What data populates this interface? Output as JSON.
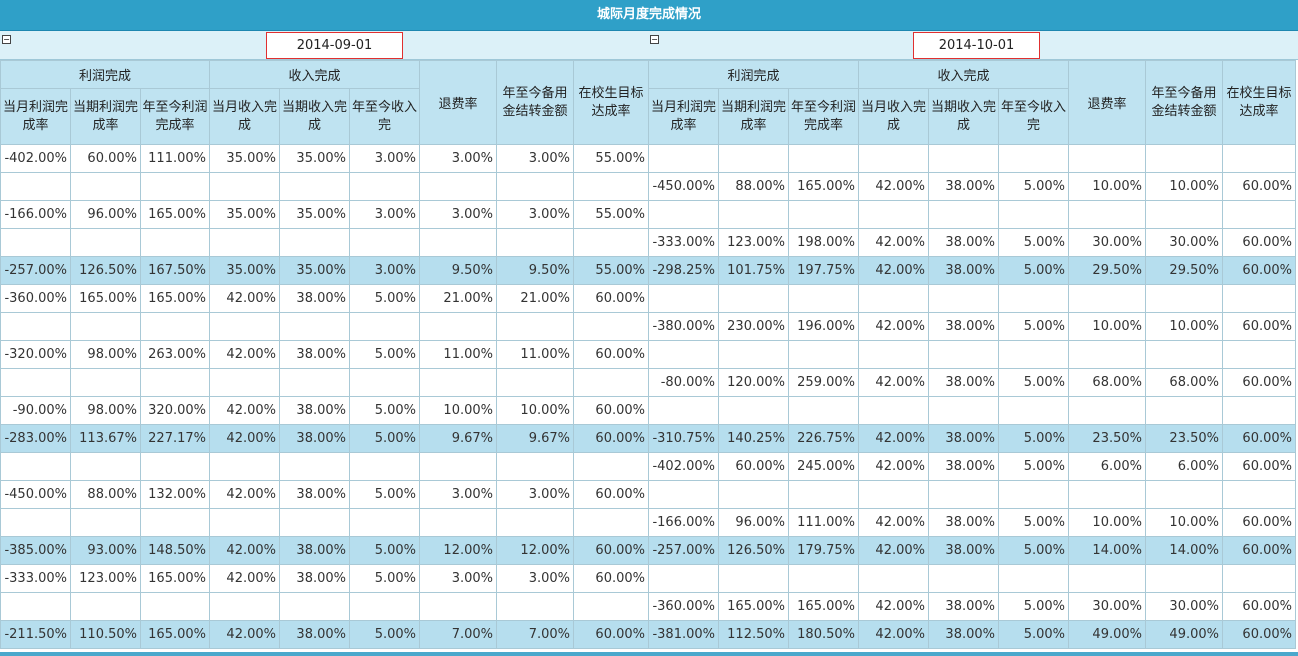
{
  "title": "城际月度完成情况",
  "groups": [
    {
      "date": "2014-09-01"
    },
    {
      "date": "2014-10-01"
    }
  ],
  "headers": {
    "profit_group": "利润完成",
    "income_group": "收入完成",
    "refund_rate": "退费率",
    "reserve_transfer": "年至今备用金结转金额",
    "enrollment_rate": "在校生目标达成率",
    "profit_month": "当月利润完成率",
    "profit_period": "当期利润完成率",
    "profit_ytd": "年至今利润完成率",
    "income_month": "当月收入完成",
    "income_period": "当期收入完成",
    "income_ytd": "年至今收入完"
  },
  "rows": [
    {
      "sub": false,
      "c": [
        "-402.00%",
        "60.00%",
        "111.00%",
        "35.00%",
        "35.00%",
        "3.00%",
        "3.00%",
        "3.00%",
        "55.00%",
        "",
        "",
        "",
        "",
        "",
        "",
        "",
        "",
        ""
      ]
    },
    {
      "sub": false,
      "c": [
        "",
        "",
        "",
        "",
        "",
        "",
        "",
        "",
        "",
        "-450.00%",
        "88.00%",
        "165.00%",
        "42.00%",
        "38.00%",
        "5.00%",
        "10.00%",
        "10.00%",
        "60.00%"
      ]
    },
    {
      "sub": false,
      "c": [
        "-166.00%",
        "96.00%",
        "165.00%",
        "35.00%",
        "35.00%",
        "3.00%",
        "3.00%",
        "3.00%",
        "55.00%",
        "",
        "",
        "",
        "",
        "",
        "",
        "",
        "",
        ""
      ]
    },
    {
      "sub": false,
      "c": [
        "",
        "",
        "",
        "",
        "",
        "",
        "",
        "",
        "",
        "-333.00%",
        "123.00%",
        "198.00%",
        "42.00%",
        "38.00%",
        "5.00%",
        "30.00%",
        "30.00%",
        "60.00%"
      ]
    },
    {
      "sub": true,
      "c": [
        "-257.00%",
        "126.50%",
        "167.50%",
        "35.00%",
        "35.00%",
        "3.00%",
        "9.50%",
        "9.50%",
        "55.00%",
        "-298.25%",
        "101.75%",
        "197.75%",
        "42.00%",
        "38.00%",
        "5.00%",
        "29.50%",
        "29.50%",
        "60.00%"
      ]
    },
    {
      "sub": false,
      "c": [
        "-360.00%",
        "165.00%",
        "165.00%",
        "42.00%",
        "38.00%",
        "5.00%",
        "21.00%",
        "21.00%",
        "60.00%",
        "",
        "",
        "",
        "",
        "",
        "",
        "",
        "",
        ""
      ]
    },
    {
      "sub": false,
      "c": [
        "",
        "",
        "",
        "",
        "",
        "",
        "",
        "",
        "",
        "-380.00%",
        "230.00%",
        "196.00%",
        "42.00%",
        "38.00%",
        "5.00%",
        "10.00%",
        "10.00%",
        "60.00%"
      ]
    },
    {
      "sub": false,
      "c": [
        "-320.00%",
        "98.00%",
        "263.00%",
        "42.00%",
        "38.00%",
        "5.00%",
        "11.00%",
        "11.00%",
        "60.00%",
        "",
        "",
        "",
        "",
        "",
        "",
        "",
        "",
        ""
      ]
    },
    {
      "sub": false,
      "c": [
        "",
        "",
        "",
        "",
        "",
        "",
        "",
        "",
        "",
        "-80.00%",
        "120.00%",
        "259.00%",
        "42.00%",
        "38.00%",
        "5.00%",
        "68.00%",
        "68.00%",
        "60.00%"
      ]
    },
    {
      "sub": false,
      "c": [
        "-90.00%",
        "98.00%",
        "320.00%",
        "42.00%",
        "38.00%",
        "5.00%",
        "10.00%",
        "10.00%",
        "60.00%",
        "",
        "",
        "",
        "",
        "",
        "",
        "",
        "",
        ""
      ]
    },
    {
      "sub": true,
      "c": [
        "-283.00%",
        "113.67%",
        "227.17%",
        "42.00%",
        "38.00%",
        "5.00%",
        "9.67%",
        "9.67%",
        "60.00%",
        "-310.75%",
        "140.25%",
        "226.75%",
        "42.00%",
        "38.00%",
        "5.00%",
        "23.50%",
        "23.50%",
        "60.00%"
      ]
    },
    {
      "sub": false,
      "c": [
        "",
        "",
        "",
        "",
        "",
        "",
        "",
        "",
        "",
        "-402.00%",
        "60.00%",
        "245.00%",
        "42.00%",
        "38.00%",
        "5.00%",
        "6.00%",
        "6.00%",
        "60.00%"
      ]
    },
    {
      "sub": false,
      "c": [
        "-450.00%",
        "88.00%",
        "132.00%",
        "42.00%",
        "38.00%",
        "5.00%",
        "3.00%",
        "3.00%",
        "60.00%",
        "",
        "",
        "",
        "",
        "",
        "",
        "",
        "",
        ""
      ]
    },
    {
      "sub": false,
      "c": [
        "",
        "",
        "",
        "",
        "",
        "",
        "",
        "",
        "",
        "-166.00%",
        "96.00%",
        "111.00%",
        "42.00%",
        "38.00%",
        "5.00%",
        "10.00%",
        "10.00%",
        "60.00%"
      ]
    },
    {
      "sub": true,
      "c": [
        "-385.00%",
        "93.00%",
        "148.50%",
        "42.00%",
        "38.00%",
        "5.00%",
        "12.00%",
        "12.00%",
        "60.00%",
        "-257.00%",
        "126.50%",
        "179.75%",
        "42.00%",
        "38.00%",
        "5.00%",
        "14.00%",
        "14.00%",
        "60.00%"
      ]
    },
    {
      "sub": false,
      "c": [
        "-333.00%",
        "123.00%",
        "165.00%",
        "42.00%",
        "38.00%",
        "5.00%",
        "3.00%",
        "3.00%",
        "60.00%",
        "",
        "",
        "",
        "",
        "",
        "",
        "",
        "",
        ""
      ]
    },
    {
      "sub": false,
      "c": [
        "",
        "",
        "",
        "",
        "",
        "",
        "",
        "",
        "",
        "-360.00%",
        "165.00%",
        "165.00%",
        "42.00%",
        "38.00%",
        "5.00%",
        "30.00%",
        "30.00%",
        "60.00%"
      ]
    },
    {
      "sub": true,
      "c": [
        "-211.50%",
        "110.50%",
        "165.00%",
        "42.00%",
        "38.00%",
        "5.00%",
        "7.00%",
        "7.00%",
        "60.00%",
        "-381.00%",
        "112.50%",
        "180.50%",
        "42.00%",
        "38.00%",
        "5.00%",
        "49.00%",
        "49.00%",
        "60.00%"
      ]
    }
  ]
}
